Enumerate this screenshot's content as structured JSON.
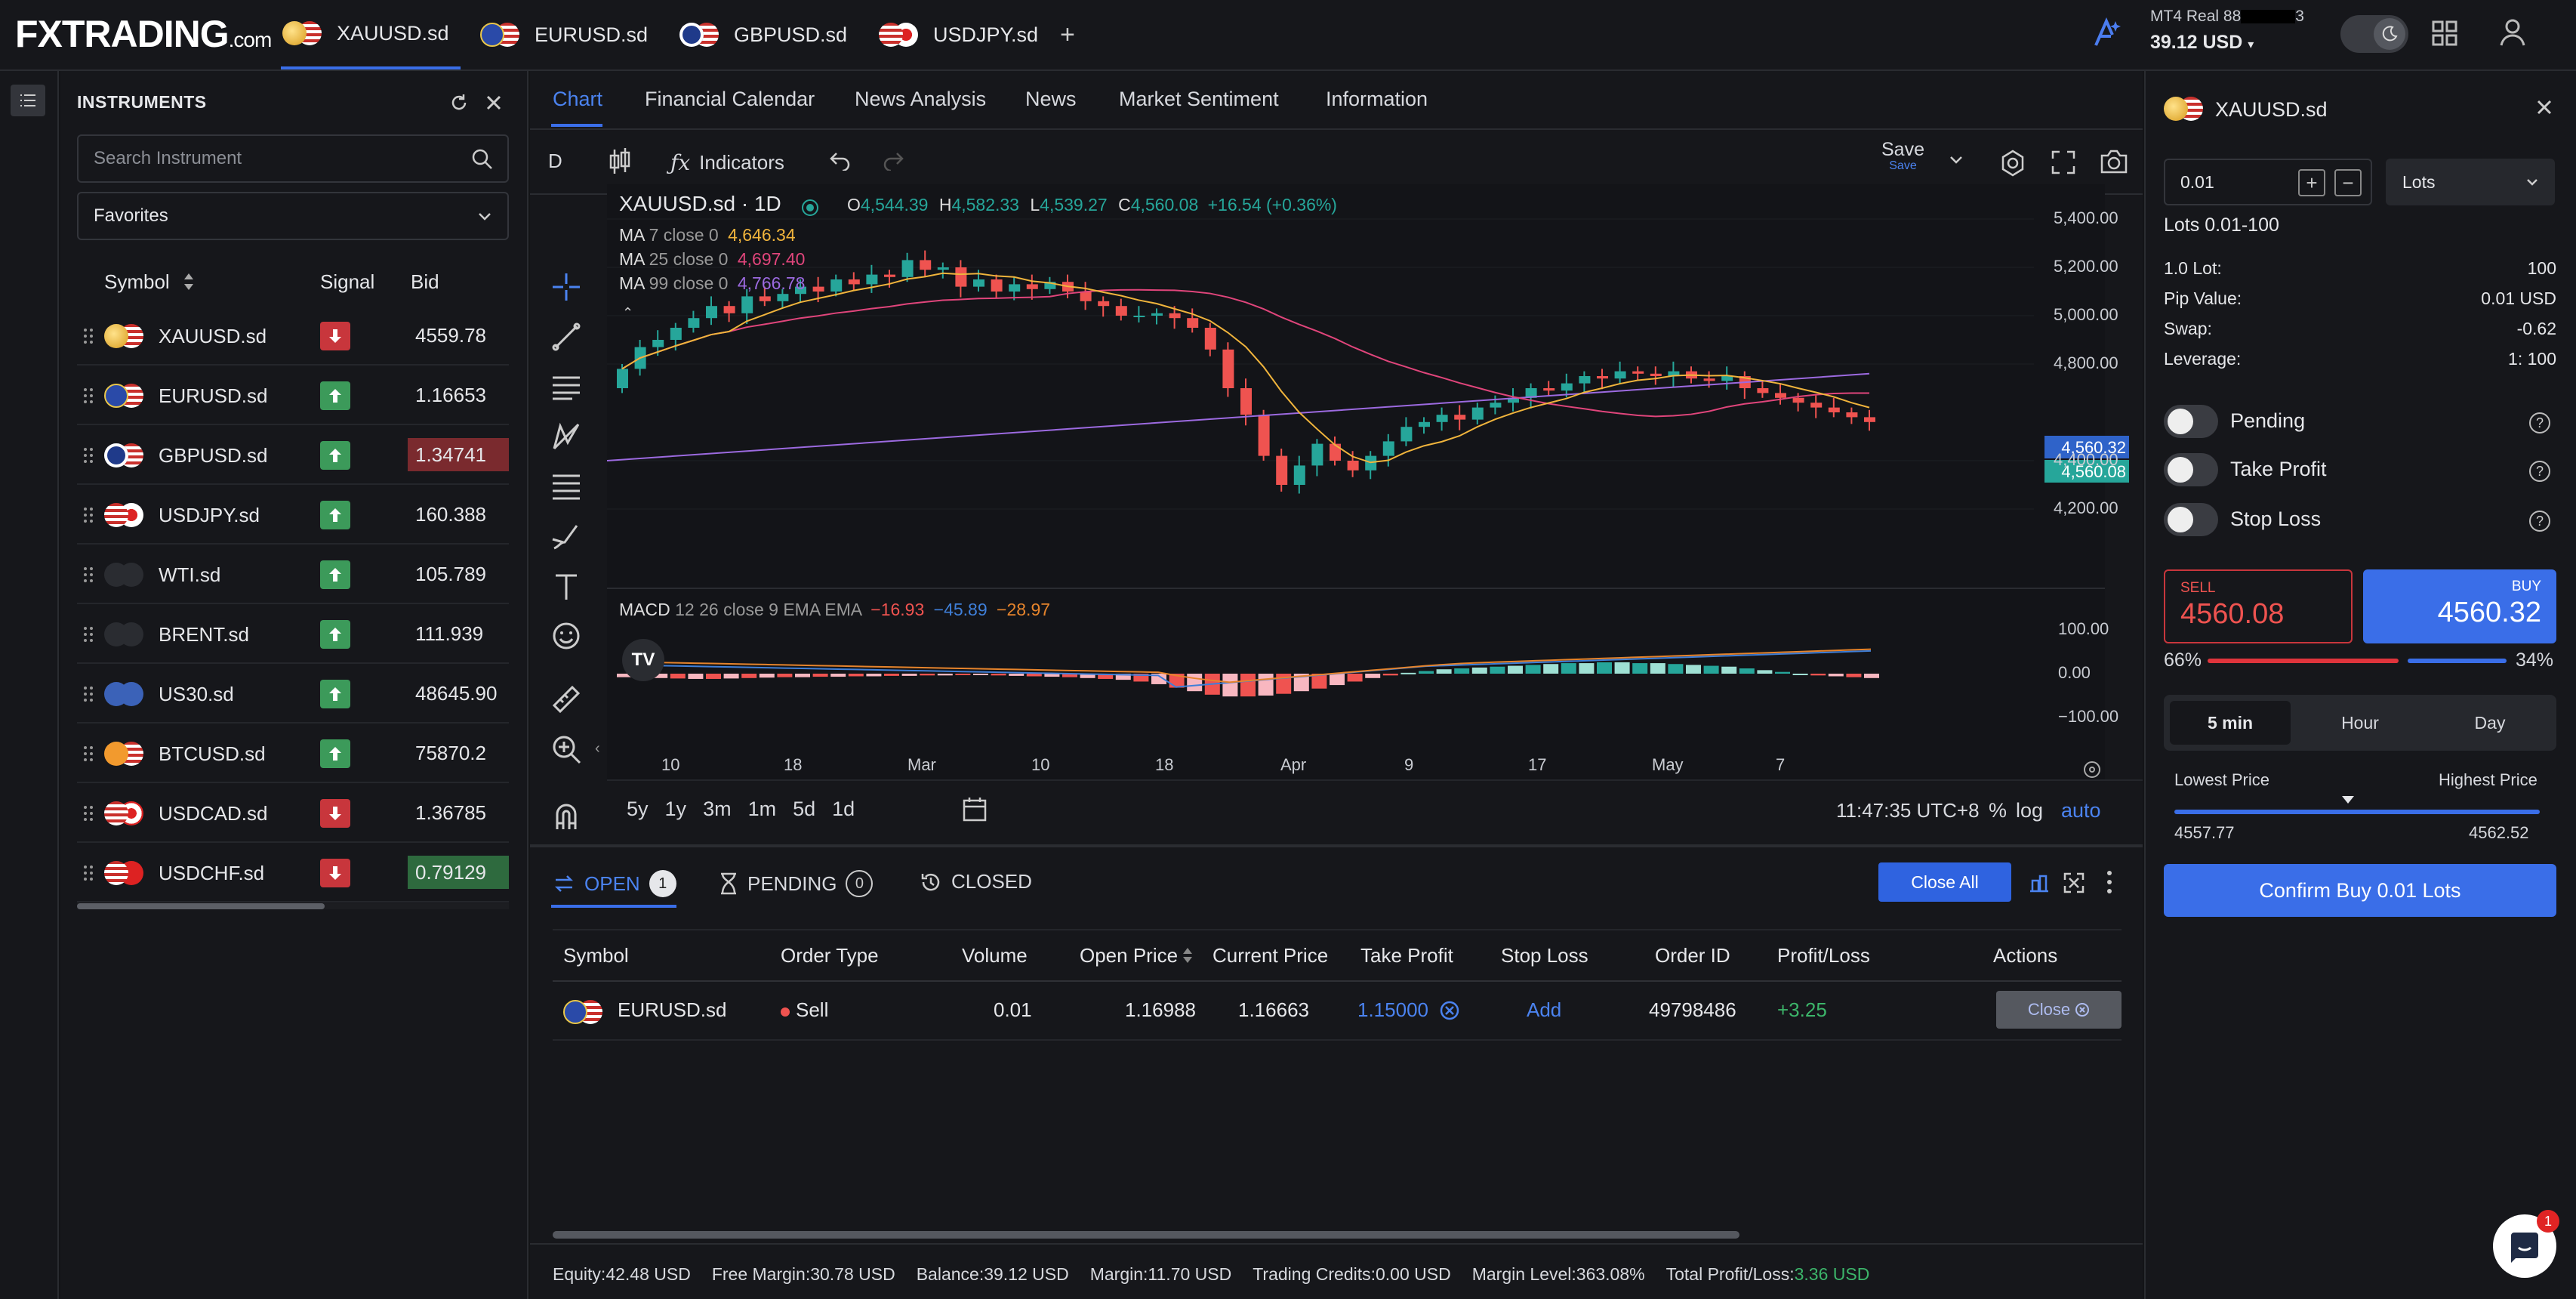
{
  "topbar": {
    "logo_main": "FXTRADING",
    "logo_suffix": ".com",
    "tabs": [
      {
        "label": "XAUUSD.sd",
        "active": true
      },
      {
        "label": "EURUSD.sd",
        "active": false
      },
      {
        "label": "GBPUSD.sd",
        "active": false
      },
      {
        "label": "USDJPY.sd",
        "active": false
      }
    ],
    "add_tab": "+",
    "account_type": "MT4",
    "account_mode": "Real",
    "account_id_prefix": "88",
    "account_id_suffix": "3",
    "balance": "39.12 USD"
  },
  "instruments": {
    "title": "INSTRUMENTS",
    "search_placeholder": "Search Instrument",
    "filter": "Favorites",
    "columns": {
      "symbol": "Symbol",
      "signal": "Signal",
      "bid": "Bid"
    },
    "rows": [
      {
        "symbol": "XAUUSD.sd",
        "signal": "down",
        "bid": "4559.78",
        "highlight": ""
      },
      {
        "symbol": "EURUSD.sd",
        "signal": "up",
        "bid": "1.16653",
        "highlight": ""
      },
      {
        "symbol": "GBPUSD.sd",
        "signal": "up",
        "bid": "1.34741",
        "highlight": "red"
      },
      {
        "symbol": "USDJPY.sd",
        "signal": "up",
        "bid": "160.388",
        "highlight": ""
      },
      {
        "symbol": "WTI.sd",
        "signal": "up",
        "bid": "105.789",
        "highlight": ""
      },
      {
        "symbol": "BRENT.sd",
        "signal": "up",
        "bid": "111.939",
        "highlight": ""
      },
      {
        "symbol": "US30.sd",
        "signal": "up",
        "bid": "48645.90",
        "highlight": ""
      },
      {
        "symbol": "BTCUSD.sd",
        "signal": "up",
        "bid": "75870.2",
        "highlight": ""
      },
      {
        "symbol": "USDCAD.sd",
        "signal": "down",
        "bid": "1.36785",
        "highlight": ""
      },
      {
        "symbol": "USDCHF.sd",
        "signal": "down",
        "bid": "0.79129",
        "highlight": "green"
      }
    ]
  },
  "center": {
    "tabs": [
      "Chart",
      "Financial Calendar",
      "News Analysis",
      "News",
      "Market Sentiment",
      "Information"
    ],
    "toolbar": {
      "interval": "D",
      "indicators": "Indicators",
      "save": "Save",
      "save_sub": "Save"
    },
    "chart": {
      "title": "XAUUSD.sd · 1D",
      "o_label": "O",
      "o": "4,544.39",
      "h_label": "H",
      "h": "4,582.33",
      "l_label": "L",
      "l": "4,539.27",
      "c_label": "C",
      "c": "4,560.08",
      "change": "+16.54 (+0.36%)",
      "ma7_label": "MA",
      "ma7_params": "7 close 0",
      "ma7_value": "4,646.34",
      "ma25_label": "MA",
      "ma25_params": "25 close 0",
      "ma25_value": "4,697.40",
      "ma99_label": "MA",
      "ma99_params": "99 close 0",
      "ma99_value": "4,766.78",
      "price_ticks": [
        "5,400.00",
        "5,200.00",
        "5,000.00",
        "4,800.00",
        "4,400.00",
        "4,200.00"
      ],
      "ask_tag": "4,560.32",
      "bid_tag": "4,560.08",
      "macd_label": "MACD",
      "macd_params": "12 26 close 9 EMA EMA",
      "macd_v1": "−16.93",
      "macd_v2": "−45.89",
      "macd_v3": "−28.97",
      "macd_ticks": [
        "100.00",
        "0.00",
        "−100.00"
      ],
      "x_ticks": [
        "10",
        "18",
        "Mar",
        "10",
        "18",
        "Apr",
        "9",
        "17",
        "May",
        "7"
      ],
      "ranges": [
        "5y",
        "1y",
        "3m",
        "1m",
        "5d",
        "1d"
      ],
      "clock": "11:47:35 UTC+8",
      "pct": "%",
      "log": "log",
      "auto": "auto",
      "colors": {
        "up": "#26a69a",
        "down": "#ef5350",
        "ma7": "#f0b43c",
        "ma25": "#e0457b",
        "ma99": "#9c6ae0"
      }
    }
  },
  "orders": {
    "tabs": [
      {
        "label": "OPEN",
        "count": "1"
      },
      {
        "label": "PENDING",
        "count": "0"
      },
      {
        "label": "CLOSED",
        "count": ""
      }
    ],
    "close_all": "Close All",
    "columns": [
      "Symbol",
      "Order Type",
      "Volume",
      "Open Price",
      "Current Price",
      "Take Profit",
      "Stop Loss",
      "Order ID",
      "Profit/Loss",
      "Actions"
    ],
    "rows": [
      {
        "symbol": "EURUSD.sd",
        "type": "Sell",
        "volume": "0.01",
        "open": "1.16988",
        "current": "1.16663",
        "tp": "1.15000",
        "sl": "Add",
        "id": "49798486",
        "pl": "+3.25",
        "action": "Close"
      }
    ]
  },
  "status": {
    "equity": "Equity:42.48 USD",
    "free_margin": "Free Margin:30.78 USD",
    "balance": "Balance:39.12 USD",
    "margin": "Margin:11.70 USD",
    "credits": "Trading Credits:0.00 USD",
    "margin_level": "Margin Level:363.08%",
    "total_pl_label": "Total Profit/Loss:",
    "total_pl_value": "3.36 USD"
  },
  "trade": {
    "symbol": "XAUUSD.sd",
    "volume": "0.01",
    "unit": "Lots",
    "lots_range": "Lots 0.01-100",
    "specs": [
      {
        "label": "1.0 Lot:",
        "value": "100"
      },
      {
        "label": "Pip Value:",
        "value": "0.01 USD"
      },
      {
        "label": "Swap:",
        "value": "-0.62"
      },
      {
        "label": "Leverage:",
        "value": "1: 100"
      }
    ],
    "toggles": [
      "Pending",
      "Take Profit",
      "Stop Loss"
    ],
    "sell_label": "SELL",
    "sell_price": "4560.08",
    "buy_label": "BUY",
    "buy_price": "4560.32",
    "sell_pct": "66%",
    "buy_pct": "34%",
    "sentiment_sell_fraction": 0.66,
    "periods": [
      "5 min",
      "Hour",
      "Day"
    ],
    "lowest_label": "Lowest Price",
    "highest_label": "Highest Price",
    "lowest": "4557.77",
    "highest": "4562.52",
    "confirm": "Confirm Buy 0.01 Lots",
    "chat_badge": "1"
  }
}
